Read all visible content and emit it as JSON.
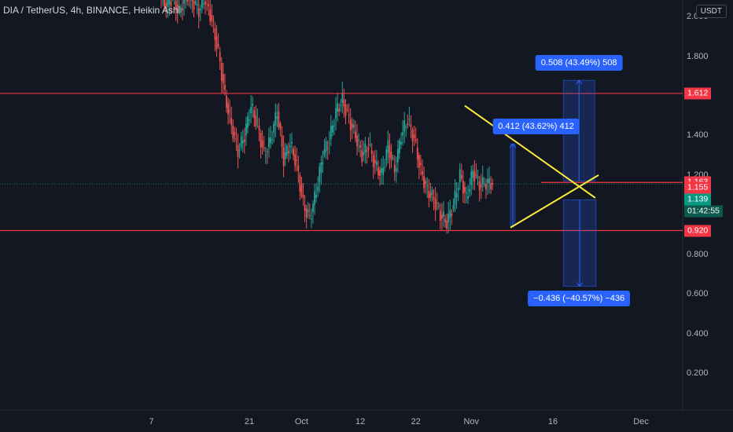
{
  "chart_data": {
    "type": "candlestick",
    "title": "DIA / TetherUS, 4h, BINANCE, Heikin Ashi",
    "currency": "USDT",
    "y_ticks": [
      "2.000",
      "1.800",
      "1.400",
      "1.200",
      "0.800",
      "0.600",
      "0.400",
      "0.200"
    ],
    "x_ticks": [
      "7",
      "21",
      "Oct",
      "12",
      "22",
      "Nov",
      "16",
      "Dec"
    ],
    "ylim": [
      0.1,
      2.1
    ],
    "price_close_series": [
      {
        "t": 0,
        "v": 2.12
      },
      {
        "t": 1,
        "v": 2.05
      },
      {
        "t": 2,
        "v": 2.1
      },
      {
        "t": 3,
        "v": 2.02
      },
      {
        "t": 4,
        "v": 2.11
      },
      {
        "t": 5,
        "v": 2.08
      },
      {
        "t": 6,
        "v": 2.03
      },
      {
        "t": 7,
        "v": 2.09
      },
      {
        "t": 8,
        "v": 1.98
      },
      {
        "t": 9,
        "v": 1.82
      },
      {
        "t": 10,
        "v": 1.6
      },
      {
        "t": 11,
        "v": 1.45
      },
      {
        "t": 12,
        "v": 1.32
      },
      {
        "t": 13,
        "v": 1.4
      },
      {
        "t": 14,
        "v": 1.55
      },
      {
        "t": 15,
        "v": 1.45
      },
      {
        "t": 16,
        "v": 1.3
      },
      {
        "t": 17,
        "v": 1.38
      },
      {
        "t": 18,
        "v": 1.52
      },
      {
        "t": 19,
        "v": 1.28
      },
      {
        "t": 20,
        "v": 1.36
      },
      {
        "t": 21,
        "v": 1.25
      },
      {
        "t": 22,
        "v": 1.05
      },
      {
        "t": 23,
        "v": 0.98
      },
      {
        "t": 24,
        "v": 1.12
      },
      {
        "t": 25,
        "v": 1.3
      },
      {
        "t": 26,
        "v": 1.38
      },
      {
        "t": 27,
        "v": 1.52
      },
      {
        "t": 28,
        "v": 1.58
      },
      {
        "t": 29,
        "v": 1.48
      },
      {
        "t": 30,
        "v": 1.4
      },
      {
        "t": 31,
        "v": 1.3
      },
      {
        "t": 32,
        "v": 1.35
      },
      {
        "t": 33,
        "v": 1.25
      },
      {
        "t": 34,
        "v": 1.2
      },
      {
        "t": 35,
        "v": 1.35
      },
      {
        "t": 36,
        "v": 1.22
      },
      {
        "t": 37,
        "v": 1.4
      },
      {
        "t": 38,
        "v": 1.48
      },
      {
        "t": 39,
        "v": 1.38
      },
      {
        "t": 40,
        "v": 1.22
      },
      {
        "t": 41,
        "v": 1.12
      },
      {
        "t": 42,
        "v": 1.08
      },
      {
        "t": 43,
        "v": 1.0
      },
      {
        "t": 44,
        "v": 0.96
      },
      {
        "t": 45,
        "v": 1.05
      },
      {
        "t": 46,
        "v": 1.2
      },
      {
        "t": 47,
        "v": 1.08
      },
      {
        "t": 48,
        "v": 1.22
      },
      {
        "t": 49,
        "v": 1.15
      },
      {
        "t": 50,
        "v": 1.16
      }
    ],
    "horizontal_levels": [
      1.612,
      1.163,
      0.92
    ],
    "price_badges": [
      {
        "value": "1.612",
        "price": 1.612,
        "color": "red"
      },
      {
        "value": "1.163",
        "price": 1.163,
        "color": "red"
      },
      {
        "value": "1.155",
        "price": 1.138,
        "color": "red"
      },
      {
        "value": "1.139",
        "price": 1.077,
        "color": "green"
      },
      {
        "value": "01:42:55",
        "price": 1.017,
        "color": "dark"
      },
      {
        "value": "0.920",
        "price": 0.92,
        "color": "red"
      }
    ],
    "trendlines": [
      {
        "from": [
          46.5,
          1.55
        ],
        "to": [
          66.5,
          1.085
        ]
      },
      {
        "from": [
          53.5,
          0.935
        ],
        "to": [
          67.0,
          1.2
        ]
      }
    ],
    "measurements": [
      {
        "label": "0.412 (43.62%) 412",
        "from": 0.945,
        "to": 1.357,
        "t0": 53.5,
        "t1": 54.2
      },
      {
        "label": "0.508 (43.49%) 508",
        "from": 1.17,
        "to": 1.678,
        "t0": 61.6,
        "t1": 66.4
      },
      {
        "label": "−0.436 (−40.57%) −436",
        "from": 1.075,
        "to": 0.639,
        "t0": 61.6,
        "t1": 66.6
      }
    ]
  }
}
